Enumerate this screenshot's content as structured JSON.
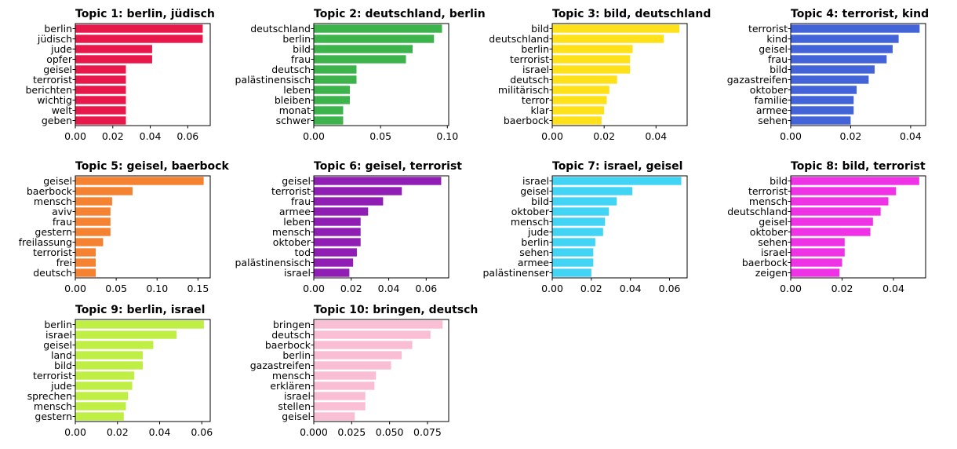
{
  "chart_data": [
    {
      "type": "bar",
      "orientation": "horizontal",
      "title": "Topic 1: berlin, jüdisch",
      "categories": [
        "berlin",
        "jüdisch",
        "jude",
        "opfer",
        "geisel",
        "terrorist",
        "berichten",
        "wichtig",
        "welt",
        "geben"
      ],
      "values": [
        0.068,
        0.068,
        0.041,
        0.041,
        0.027,
        0.027,
        0.027,
        0.027,
        0.027,
        0.027
      ],
      "xlim": [
        0,
        0.072
      ],
      "xticks": [
        0.0,
        0.02,
        0.04,
        0.06
      ],
      "xtick_labels": [
        "0.00",
        "0.02",
        "0.04",
        "0.06"
      ],
      "color": "#e8194a"
    },
    {
      "type": "bar",
      "orientation": "horizontal",
      "title": "Topic 2: deutschland, berlin",
      "categories": [
        "deutschland",
        "berlin",
        "bild",
        "frau",
        "deutsch",
        "palästinensisch",
        "leben",
        "bleiben",
        "monat",
        "schwer"
      ],
      "values": [
        0.096,
        0.09,
        0.074,
        0.069,
        0.032,
        0.032,
        0.027,
        0.027,
        0.022,
        0.022
      ],
      "xlim": [
        0,
        0.101
      ],
      "xticks": [
        0.0,
        0.05,
        0.1
      ],
      "xtick_labels": [
        "0.00",
        "0.05",
        "0.10"
      ],
      "color": "#3cb44b"
    },
    {
      "type": "bar",
      "orientation": "horizontal",
      "title": "Topic 3: bild, deutschland",
      "categories": [
        "bild",
        "deutschland",
        "berlin",
        "terrorist",
        "israel",
        "deutsch",
        "militärisch",
        "terror",
        "klar",
        "baerbock"
      ],
      "values": [
        0.049,
        0.043,
        0.031,
        0.03,
        0.03,
        0.025,
        0.022,
        0.021,
        0.02,
        0.019
      ],
      "xlim": [
        0,
        0.052
      ],
      "xticks": [
        0.0,
        0.02,
        0.04
      ],
      "xtick_labels": [
        "0.00",
        "0.02",
        "0.04"
      ],
      "color": "#ffe119"
    },
    {
      "type": "bar",
      "orientation": "horizontal",
      "title": "Topic 4: terrorist, kind",
      "categories": [
        "terrorist",
        "kind",
        "geisel",
        "frau",
        "bild",
        "gazastreifen",
        "oktober",
        "familie",
        "armee",
        "sehen"
      ],
      "values": [
        0.043,
        0.036,
        0.034,
        0.032,
        0.028,
        0.026,
        0.022,
        0.021,
        0.021,
        0.02
      ],
      "xlim": [
        0,
        0.045
      ],
      "xticks": [
        0.0,
        0.02,
        0.04
      ],
      "xtick_labels": [
        "0.00",
        "0.02",
        "0.04"
      ],
      "color": "#4363d8"
    },
    {
      "type": "bar",
      "orientation": "horizontal",
      "title": "Topic 5: geisel, baerbock",
      "categories": [
        "geisel",
        "baerbock",
        "mensch",
        "aviv",
        "frau",
        "gestern",
        "freilassung",
        "terrorist",
        "frei",
        "deutsch"
      ],
      "values": [
        0.157,
        0.07,
        0.045,
        0.043,
        0.043,
        0.043,
        0.034,
        0.025,
        0.025,
        0.025
      ],
      "xlim": [
        0,
        0.165
      ],
      "xticks": [
        0.0,
        0.05,
        0.1,
        0.15
      ],
      "xtick_labels": [
        "0.00",
        "0.05",
        "0.10",
        "0.15"
      ],
      "color": "#f58231"
    },
    {
      "type": "bar",
      "orientation": "horizontal",
      "title": "Topic 6: geisel, terrorist",
      "categories": [
        "geisel",
        "terrorist",
        "frau",
        "armee",
        "leben",
        "mensch",
        "oktober",
        "tod",
        "palästinensisch",
        "israel"
      ],
      "values": [
        0.068,
        0.047,
        0.037,
        0.029,
        0.025,
        0.025,
        0.025,
        0.023,
        0.021,
        0.019
      ],
      "xlim": [
        0,
        0.072
      ],
      "xticks": [
        0.0,
        0.02,
        0.04,
        0.06
      ],
      "xtick_labels": [
        "0.00",
        "0.02",
        "0.04",
        "0.06"
      ],
      "color": "#911eb4"
    },
    {
      "type": "bar",
      "orientation": "horizontal",
      "title": "Topic 7: israel, geisel",
      "categories": [
        "israel",
        "geisel",
        "bild",
        "oktober",
        "mensch",
        "jude",
        "berlin",
        "sehen",
        "armee",
        "palästinenser"
      ],
      "values": [
        0.066,
        0.041,
        0.033,
        0.029,
        0.027,
        0.026,
        0.022,
        0.021,
        0.021,
        0.02
      ],
      "xlim": [
        0,
        0.069
      ],
      "xticks": [
        0.0,
        0.02,
        0.04,
        0.06
      ],
      "xtick_labels": [
        "0.00",
        "0.02",
        "0.04",
        "0.06"
      ],
      "color": "#42d4f4"
    },
    {
      "type": "bar",
      "orientation": "horizontal",
      "title": "Topic 8: bild, terrorist",
      "categories": [
        "bild",
        "terrorist",
        "mensch",
        "deutschland",
        "geisel",
        "oktober",
        "sehen",
        "israel",
        "baerbock",
        "zeigen"
      ],
      "values": [
        0.05,
        0.041,
        0.038,
        0.035,
        0.032,
        0.031,
        0.021,
        0.021,
        0.02,
        0.019
      ],
      "xlim": [
        0,
        0.0525
      ],
      "xticks": [
        0.0,
        0.02,
        0.04
      ],
      "xtick_labels": [
        "0.00",
        "0.02",
        "0.04"
      ],
      "color": "#f032e6"
    },
    {
      "type": "bar",
      "orientation": "horizontal",
      "title": "Topic 9: berlin, israel",
      "categories": [
        "berlin",
        "israel",
        "geisel",
        "land",
        "bild",
        "terrorist",
        "jude",
        "sprechen",
        "mensch",
        "gestern"
      ],
      "values": [
        0.061,
        0.048,
        0.037,
        0.032,
        0.032,
        0.028,
        0.027,
        0.025,
        0.024,
        0.023
      ],
      "xlim": [
        0,
        0.064
      ],
      "xticks": [
        0.0,
        0.02,
        0.04,
        0.06
      ],
      "xtick_labels": [
        "0.00",
        "0.02",
        "0.04",
        "0.06"
      ],
      "color": "#bfef45"
    },
    {
      "type": "bar",
      "orientation": "horizontal",
      "title": "Topic 10: bringen, deutsch",
      "categories": [
        "bringen",
        "deutsch",
        "baerbock",
        "berlin",
        "gazastreifen",
        "mensch",
        "erklären",
        "israel",
        "stellen",
        "geisel"
      ],
      "values": [
        0.085,
        0.077,
        0.065,
        0.058,
        0.051,
        0.041,
        0.04,
        0.034,
        0.034,
        0.027
      ],
      "xlim": [
        0,
        0.089
      ],
      "xticks": [
        0.0,
        0.025,
        0.05,
        0.075
      ],
      "xtick_labels": [
        "0.000",
        "0.025",
        "0.050",
        "0.075"
      ],
      "color": "#fabed4"
    }
  ]
}
